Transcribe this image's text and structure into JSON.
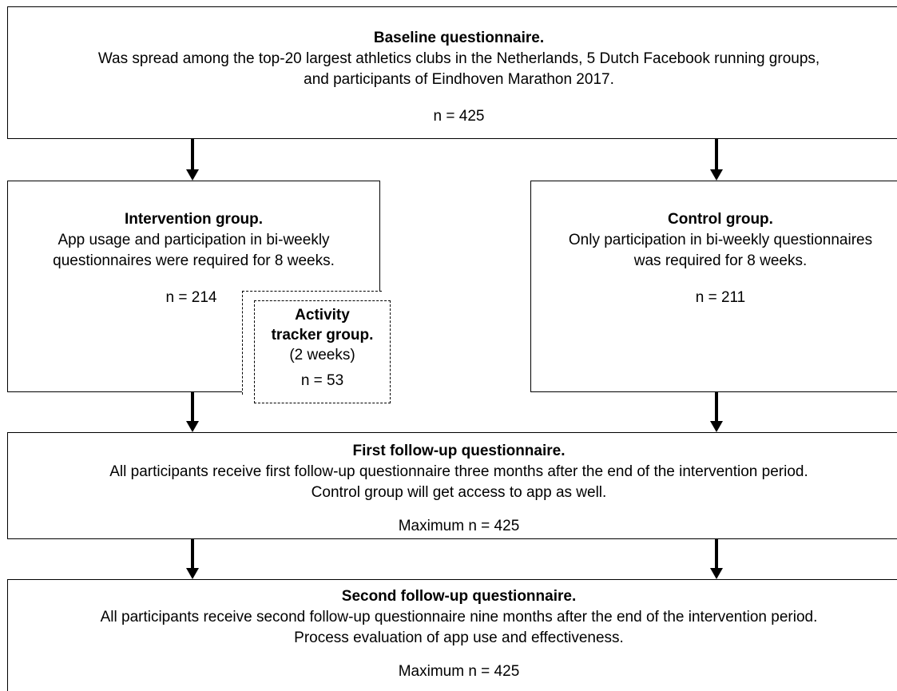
{
  "baseline": {
    "title": "Baseline questionnaire.",
    "lines": [
      "Was spread among the top-20 largest athletics clubs in the Netherlands, 5 Dutch Facebook running groups,",
      "and participants of Eindhoven Marathon 2017."
    ],
    "n": "n = 425"
  },
  "intervention": {
    "title": "Intervention group.",
    "lines": [
      "App usage and participation in bi-weekly",
      "questionnaires were required for 8 weeks."
    ],
    "n": "n = 214"
  },
  "tracker": {
    "title_lines": [
      "Activity",
      "tracker group."
    ],
    "subtitle": "(2 weeks)",
    "n": "n = 53"
  },
  "control": {
    "title": "Control group.",
    "lines": [
      "Only participation in bi-weekly questionnaires",
      "was required for 8 weeks."
    ],
    "n": "n = 211"
  },
  "followup1": {
    "title": "First follow-up questionnaire.",
    "lines": [
      "All participants receive first follow-up questionnaire three months after the end of the intervention period.",
      "Control group will get access to app as well."
    ],
    "n": "Maximum n = 425"
  },
  "followup2": {
    "title": "Second follow-up questionnaire.",
    "lines": [
      "All participants receive second follow-up questionnaire nine months after the end of the intervention period.",
      "Process evaluation of app use and effectiveness."
    ],
    "n": "Maximum n = 425"
  }
}
